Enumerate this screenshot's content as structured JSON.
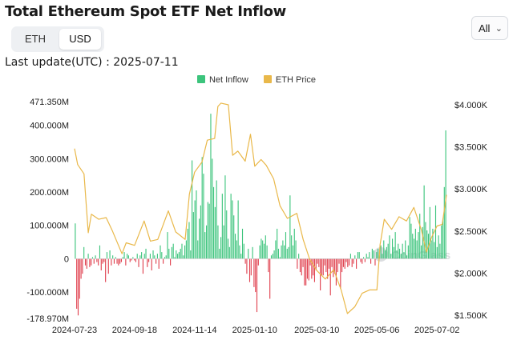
{
  "header": {
    "title": "Total Ethereum Spot ETF Net Inflow",
    "currency_options": [
      "ETH",
      "USD"
    ],
    "currency_selected": "USD",
    "range_label": "All",
    "last_update": "Last update(UTC) : 2025-07-11"
  },
  "colors": {
    "inflow": "#3cc47c",
    "outflow": "#e0404e",
    "price": "#e9b84a"
  },
  "watermark": "CoinGlass",
  "chart_data": {
    "type": "bar",
    "title": "Total Ethereum Spot ETF Net Inflow",
    "legend": [
      "Net Inflow",
      "ETH Price"
    ],
    "legend_position": "top-center",
    "y_left_ticks": [
      "471.350M",
      "400.000M",
      "300.000M",
      "200.000M",
      "100.000M",
      "0",
      "-100.000M",
      "-178.970M"
    ],
    "y_left_range_musd": [
      -178.97,
      471.35
    ],
    "y_right_ticks": [
      "$4.000K",
      "$3.500K",
      "$3.000K",
      "$2.500K",
      "$2.000K",
      "$1.500K"
    ],
    "y_right_range_usd": [
      1500,
      4000
    ],
    "x_ticks": [
      "2024-07-23",
      "2024-09-18",
      "2024-11-14",
      "2025-01-10",
      "2025-03-10",
      "2025-05-06",
      "2025-07-02"
    ],
    "x_range": [
      "2024-07-23",
      "2025-07-11"
    ],
    "series": [
      {
        "name": "Net Inflow",
        "kind": "bar",
        "unit": "M USD",
        "values": [
          106,
          -150,
          -170,
          -120,
          -60,
          -45,
          35,
          -20,
          -30,
          15,
          -25,
          -20,
          5,
          -15,
          10,
          -10,
          -20,
          40,
          -35,
          -15,
          -10,
          -70,
          20,
          -45,
          25,
          -20,
          10,
          -15,
          5,
          -15,
          -20,
          -15,
          -10,
          5,
          20,
          -20,
          15,
          10,
          -10,
          -5,
          5,
          -5,
          -10,
          15,
          -25,
          10,
          20,
          -45,
          15,
          30,
          -25,
          -10,
          15,
          -35,
          25,
          10,
          -15,
          15,
          -30,
          40,
          20,
          -15,
          5,
          10,
          80,
          30,
          -20,
          35,
          45,
          5,
          25,
          15,
          20,
          30,
          45,
          10,
          40,
          55,
          90,
          110,
          25,
          295,
          140,
          175,
          205,
          55,
          120,
          160,
          305,
          255,
          80,
          100,
          170,
          165,
          435,
          300,
          215,
          155,
          235,
          100,
          30,
          65,
          195,
          100,
          250,
          145,
          60,
          35,
          195,
          175,
          130,
          75,
          55,
          175,
          40,
          15,
          90,
          45,
          -15,
          -45,
          30,
          -70,
          -50,
          35,
          -85,
          -100,
          -160,
          -20,
          40,
          60,
          55,
          45,
          70,
          40,
          -40,
          -120,
          10,
          15,
          25,
          55,
          90,
          30,
          5,
          40,
          55,
          40,
          80,
          30,
          35,
          190,
          70,
          40,
          90,
          55,
          -30,
          15,
          -40,
          -50,
          -25,
          -80,
          -80,
          -60,
          -65,
          -20,
          -60,
          -50,
          -70,
          -35,
          -15,
          -25,
          -95,
          -50,
          -50,
          -20,
          -40,
          -60,
          -30,
          -110,
          -25,
          -55,
          -45,
          -80,
          -40,
          -15,
          -90,
          -40,
          -25,
          -30,
          -10,
          -25,
          -20,
          15,
          -25,
          -15,
          10,
          -30,
          20,
          20,
          -10,
          -15,
          5,
          -10,
          15,
          5,
          20,
          -15,
          30,
          25,
          -20,
          20,
          30,
          10,
          40,
          15,
          55,
          25,
          35,
          45,
          70,
          15,
          60,
          35,
          80,
          25,
          45,
          30,
          15,
          45,
          20,
          55,
          10,
          40,
          125,
          105,
          75,
          60,
          90,
          55,
          80,
          135,
          40,
          95,
          220,
          110,
          85,
          75,
          155,
          55,
          90,
          50,
          160,
          35,
          70,
          45,
          100,
          120,
          215,
          385
        ]
      },
      {
        "name": "ETH Price",
        "kind": "line",
        "unit": "USD",
        "x": [
          "2024-07-23",
          "2024-07-26",
          "2024-08-01",
          "2024-08-05",
          "2024-08-08",
          "2024-08-15",
          "2024-08-22",
          "2024-08-28",
          "2024-09-06",
          "2024-09-10",
          "2024-09-18",
          "2024-09-27",
          "2024-10-03",
          "2024-10-10",
          "2024-10-20",
          "2024-10-27",
          "2024-11-05",
          "2024-11-09",
          "2024-11-14",
          "2024-11-21",
          "2024-11-26",
          "2024-12-03",
          "2024-12-06",
          "2024-12-09",
          "2024-12-16",
          "2024-12-20",
          "2024-12-25",
          "2025-01-01",
          "2025-01-06",
          "2025-01-10",
          "2025-01-16",
          "2025-01-21",
          "2025-01-28",
          "2025-02-03",
          "2025-02-10",
          "2025-02-19",
          "2025-02-25",
          "2025-03-03",
          "2025-03-10",
          "2025-03-18",
          "2025-03-26",
          "2025-04-02",
          "2025-04-08",
          "2025-04-15",
          "2025-04-22",
          "2025-04-29",
          "2025-05-06",
          "2025-05-09",
          "2025-05-13",
          "2025-05-20",
          "2025-05-27",
          "2025-06-03",
          "2025-06-10",
          "2025-06-17",
          "2025-06-22",
          "2025-06-27",
          "2025-07-02",
          "2025-07-07",
          "2025-07-11"
        ],
        "values": [
          3480,
          3290,
          3180,
          2480,
          2700,
          2640,
          2660,
          2500,
          2230,
          2360,
          2330,
          2620,
          2380,
          2400,
          2740,
          2490,
          2400,
          2940,
          3200,
          3320,
          3580,
          3600,
          3980,
          4020,
          4000,
          3400,
          3450,
          3330,
          3650,
          3270,
          3350,
          3280,
          3120,
          2800,
          2650,
          2710,
          2400,
          2170,
          2030,
          1930,
          2040,
          1800,
          1520,
          1600,
          1760,
          1800,
          1800,
          2340,
          2640,
          2520,
          2670,
          2620,
          2780,
          2520,
          2250,
          2430,
          2560,
          2580,
          2930
        ]
      }
    ]
  }
}
